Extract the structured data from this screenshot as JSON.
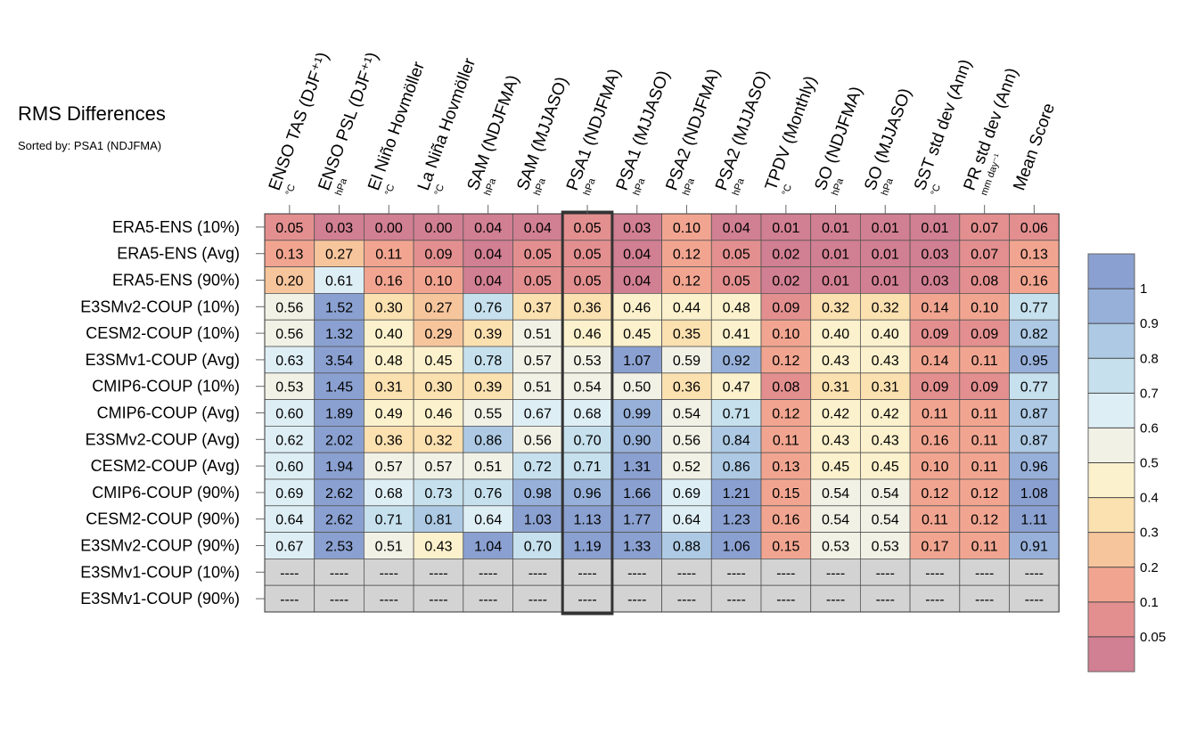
{
  "title": "RMS Differences",
  "subtitle": "Sorted by: PSA1 (NDJFMA)",
  "chart_data": {
    "type": "heatmap",
    "title": "RMS Differences",
    "subtitle": "Sorted by: PSA1 (NDJFMA)",
    "sorted_by": "PSA1 (NDJFMA)",
    "highlighted_column": "PSA1 (NDJFMA)",
    "missing_value_text": "----",
    "columns": [
      {
        "name": "ENSO TAS (DJF⁺¹)",
        "unit": "°C"
      },
      {
        "name": "ENSO PSL (DJF⁺¹)",
        "unit": "hPa"
      },
      {
        "name": "El Niño Hovmöller",
        "unit": "°C"
      },
      {
        "name": "La Niña Hovmöller",
        "unit": "°C"
      },
      {
        "name": "SAM (NDJFMA)",
        "unit": "hPa"
      },
      {
        "name": "SAM (MJJASO)",
        "unit": "hPa"
      },
      {
        "name": "PSA1 (NDJFMA)",
        "unit": "hPa"
      },
      {
        "name": "PSA1 (MJJASO)",
        "unit": "hPa"
      },
      {
        "name": "PSA2 (NDJFMA)",
        "unit": "hPa"
      },
      {
        "name": "PSA2 (MJJASO)",
        "unit": "hPa"
      },
      {
        "name": "TPDV (Monthly)",
        "unit": "°C"
      },
      {
        "name": "SO (NDJFMA)",
        "unit": "hPa"
      },
      {
        "name": "SO (MJJASO)",
        "unit": "hPa"
      },
      {
        "name": "SST std dev (Ann)",
        "unit": "°C"
      },
      {
        "name": "PR std dev (Ann)",
        "unit": "mm day⁻¹"
      },
      {
        "name": "Mean Score",
        "unit": ""
      }
    ],
    "rows": [
      {
        "name": "ERA5-ENS (10%)",
        "values": [
          "0.05",
          "0.03",
          "0.00",
          "0.00",
          "0.04",
          "0.04",
          "0.05",
          "0.03",
          "0.10",
          "0.04",
          "0.01",
          "0.01",
          "0.01",
          "0.01",
          "0.07",
          "0.06"
        ]
      },
      {
        "name": "ERA5-ENS (Avg)",
        "values": [
          "0.13",
          "0.27",
          "0.11",
          "0.09",
          "0.04",
          "0.05",
          "0.05",
          "0.04",
          "0.12",
          "0.05",
          "0.02",
          "0.01",
          "0.01",
          "0.03",
          "0.07",
          "0.13"
        ]
      },
      {
        "name": "ERA5-ENS (90%)",
        "values": [
          "0.20",
          "0.61",
          "0.16",
          "0.10",
          "0.04",
          "0.05",
          "0.05",
          "0.04",
          "0.12",
          "0.05",
          "0.02",
          "0.01",
          "0.01",
          "0.03",
          "0.08",
          "0.16"
        ]
      },
      {
        "name": "E3SMv2-COUP (10%)",
        "values": [
          "0.56",
          "1.52",
          "0.30",
          "0.27",
          "0.76",
          "0.37",
          "0.36",
          "0.46",
          "0.44",
          "0.48",
          "0.09",
          "0.32",
          "0.32",
          "0.14",
          "0.10",
          "0.77"
        ]
      },
      {
        "name": "CESM2-COUP (10%)",
        "values": [
          "0.56",
          "1.32",
          "0.40",
          "0.29",
          "0.39",
          "0.51",
          "0.46",
          "0.45",
          "0.35",
          "0.41",
          "0.10",
          "0.40",
          "0.40",
          "0.09",
          "0.09",
          "0.82"
        ]
      },
      {
        "name": "E3SMv1-COUP (Avg)",
        "values": [
          "0.63",
          "3.54",
          "0.48",
          "0.45",
          "0.78",
          "0.57",
          "0.53",
          "1.07",
          "0.59",
          "0.92",
          "0.12",
          "0.43",
          "0.43",
          "0.14",
          "0.11",
          "0.95"
        ]
      },
      {
        "name": "CMIP6-COUP (10%)",
        "values": [
          "0.53",
          "1.45",
          "0.31",
          "0.30",
          "0.39",
          "0.51",
          "0.54",
          "0.50",
          "0.36",
          "0.47",
          "0.08",
          "0.31",
          "0.31",
          "0.09",
          "0.09",
          "0.77"
        ]
      },
      {
        "name": "CMIP6-COUP (Avg)",
        "values": [
          "0.60",
          "1.89",
          "0.49",
          "0.46",
          "0.55",
          "0.67",
          "0.68",
          "0.99",
          "0.54",
          "0.71",
          "0.12",
          "0.42",
          "0.42",
          "0.11",
          "0.11",
          "0.87"
        ]
      },
      {
        "name": "E3SMv2-COUP (Avg)",
        "values": [
          "0.62",
          "2.02",
          "0.36",
          "0.32",
          "0.86",
          "0.56",
          "0.70",
          "0.90",
          "0.56",
          "0.84",
          "0.11",
          "0.43",
          "0.43",
          "0.16",
          "0.11",
          "0.87"
        ]
      },
      {
        "name": "CESM2-COUP (Avg)",
        "values": [
          "0.60",
          "1.94",
          "0.57",
          "0.57",
          "0.51",
          "0.72",
          "0.71",
          "1.31",
          "0.52",
          "0.86",
          "0.13",
          "0.45",
          "0.45",
          "0.10",
          "0.11",
          "0.96"
        ]
      },
      {
        "name": "CMIP6-COUP (90%)",
        "values": [
          "0.69",
          "2.62",
          "0.68",
          "0.73",
          "0.76",
          "0.98",
          "0.96",
          "1.66",
          "0.69",
          "1.21",
          "0.15",
          "0.54",
          "0.54",
          "0.12",
          "0.12",
          "1.08"
        ]
      },
      {
        "name": "CESM2-COUP (90%)",
        "values": [
          "0.64",
          "2.62",
          "0.71",
          "0.81",
          "0.64",
          "1.03",
          "1.13",
          "1.77",
          "0.64",
          "1.23",
          "0.16",
          "0.54",
          "0.54",
          "0.11",
          "0.12",
          "1.11"
        ]
      },
      {
        "name": "E3SMv2-COUP (90%)",
        "values": [
          "0.67",
          "2.53",
          "0.51",
          "0.43",
          "1.04",
          "0.70",
          "1.19",
          "1.33",
          "0.88",
          "1.06",
          "0.15",
          "0.53",
          "0.53",
          "0.17",
          "0.11",
          "0.91"
        ]
      },
      {
        "name": "E3SMv1-COUP (10%)",
        "values": [
          "----",
          "----",
          "----",
          "----",
          "----",
          "----",
          "----",
          "----",
          "----",
          "----",
          "----",
          "----",
          "----",
          "----",
          "----",
          "----"
        ]
      },
      {
        "name": "E3SMv1-COUP (90%)",
        "values": [
          "----",
          "----",
          "----",
          "----",
          "----",
          "----",
          "----",
          "----",
          "----",
          "----",
          "----",
          "----",
          "----",
          "----",
          "----",
          "----"
        ]
      }
    ],
    "colorbar": {
      "tick_labels": [
        "1",
        "0.9",
        "0.8",
        "0.7",
        "0.6",
        "0.5",
        "0.4",
        "0.3",
        "0.2",
        "0.1",
        "0.05"
      ],
      "thresholds": [
        0.05,
        0.1,
        0.2,
        0.3,
        0.4,
        0.5,
        0.6,
        0.7,
        0.8,
        0.9,
        1.0
      ],
      "colors": [
        "#d17f92",
        "#e38f8f",
        "#f1a590",
        "#f7c59c",
        "#fbe0b0",
        "#fbf1cc",
        "#f1f1e6",
        "#deeef5",
        "#c6e0ed",
        "#adc9e3",
        "#97b0d9",
        "#8aa0d0"
      ],
      "missing_color": "#d3d3d3"
    }
  }
}
